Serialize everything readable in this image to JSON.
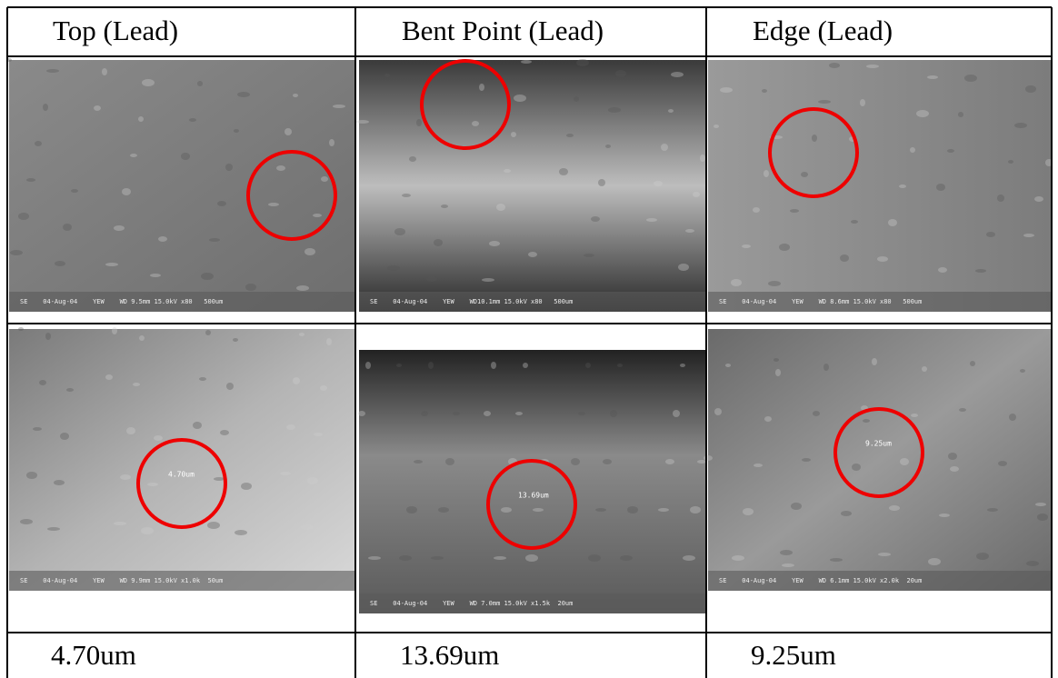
{
  "header": [
    "Top (Lead)",
    "Bent Point (Lead)",
    "Edge (Lead)"
  ],
  "rows": [
    [
      {
        "info": "SE    04-Aug-04    YEW    WD 9.5mm 15.0kV x80   500um"
      },
      {
        "info": "SE    04-Aug-04    YEW    WD10.1mm 15.0kV x80   500um"
      },
      {
        "info": "SE    04-Aug-04    YEW    WD 8.6mm 15.0kV x80   500um"
      }
    ],
    [
      {
        "info": "SE    04-Aug-04    YEW    WD 9.9mm 15.0kV x1.0k  50um",
        "measurement": "4.70um"
      },
      {
        "info": "SE    04-Aug-04    YEW    WD 7.0mm 15.0kV x1.5k  20um",
        "measurement": "13.69um"
      },
      {
        "info": "SE    04-Aug-04    YEW    WD 6.1mm 15.0kV x2.0k  20um",
        "measurement": "9.25um"
      }
    ]
  ],
  "results": [
    "4.70um",
    "13.69um",
    "9.25um"
  ]
}
